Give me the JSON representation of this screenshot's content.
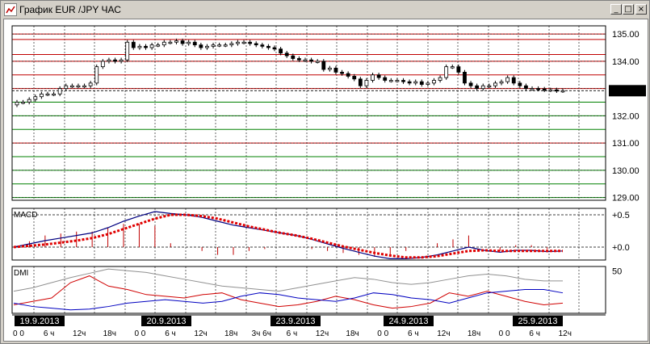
{
  "window": {
    "title": "График EUR /JPY ЧАС",
    "buttons": {
      "minimize": "_",
      "maximize": "□",
      "close": "×"
    }
  },
  "chart_data": [
    {
      "type": "candlestick",
      "symbol": "EUR/JPY",
      "timeframe": "ЧАС",
      "y_ticks": [
        "135.00",
        "134.00",
        "133.00",
        "132.00",
        "131.00",
        "130.00",
        "129.00"
      ],
      "ylim": [
        128.9,
        135.3
      ],
      "current_price": "132.92",
      "red_levels": [
        135.0,
        134.8,
        134.25,
        134.0,
        133.5,
        133.0,
        131.0
      ],
      "green_levels": [
        132.5,
        132.0,
        131.5,
        130.5,
        130.0,
        129.5,
        129.0
      ],
      "close": [
        132.5,
        132.5,
        132.6,
        132.7,
        132.8,
        132.8,
        132.8,
        133.0,
        133.1,
        133.1,
        133.1,
        133.1,
        133.2,
        133.8,
        134.0,
        134.05,
        134.0,
        134.05,
        134.7,
        134.5,
        134.55,
        134.5,
        134.6,
        134.6,
        134.7,
        134.7,
        134.75,
        134.65,
        134.7,
        134.6,
        134.5,
        134.55,
        134.6,
        134.6,
        134.6,
        134.65,
        134.7,
        134.7,
        134.65,
        134.6,
        134.55,
        134.5,
        134.45,
        134.3,
        134.2,
        134.1,
        134.05,
        134.05,
        134.0,
        134.0,
        133.7,
        133.75,
        133.6,
        133.55,
        133.45,
        133.35,
        133.1,
        133.3,
        133.5,
        133.4,
        133.3,
        133.3,
        133.3,
        133.25,
        133.2,
        133.25,
        133.15,
        133.2,
        133.3,
        133.4,
        133.8,
        133.8,
        133.6,
        133.2,
        133.1,
        133.0,
        133.1,
        133.1,
        133.2,
        133.25,
        133.4,
        133.2,
        133.1,
        133.0,
        133.0,
        132.98,
        132.95,
        132.95,
        132.92,
        132.92
      ],
      "macd": {
        "label": "MACD",
        "y_ticks": [
          "+0.5",
          "+0.0"
        ],
        "ylim": [
          -0.2,
          0.6
        ],
        "macd_line": [
          0.0,
          0.05,
          0.1,
          0.14,
          0.18,
          0.22,
          0.3,
          0.4,
          0.48,
          0.55,
          0.52,
          0.5,
          0.46,
          0.4,
          0.34,
          0.3,
          0.26,
          0.22,
          0.18,
          0.12,
          0.05,
          -0.02,
          -0.08,
          -0.14,
          -0.18,
          -0.18,
          -0.16,
          -0.12,
          -0.06,
          0.0,
          -0.05,
          -0.08,
          -0.05,
          -0.05,
          -0.07,
          -0.06
        ],
        "signal_line": [
          0.0,
          0.02,
          0.04,
          0.07,
          0.1,
          0.14,
          0.2,
          0.28,
          0.36,
          0.44,
          0.5,
          0.5,
          0.48,
          0.44,
          0.38,
          0.32,
          0.27,
          0.22,
          0.18,
          0.13,
          0.07,
          0.01,
          -0.04,
          -0.09,
          -0.13,
          -0.16,
          -0.16,
          -0.14,
          -0.1,
          -0.06,
          -0.05,
          -0.06,
          -0.06,
          -0.06,
          -0.06,
          -0.06
        ]
      },
      "dmi": {
        "label": "DMI",
        "y_ticks": [
          "50"
        ],
        "ylim": [
          0,
          55
        ],
        "adx": [
          26,
          30,
          36,
          42,
          47,
          52,
          50,
          48,
          44,
          40,
          36,
          32,
          30,
          28,
          26,
          30,
          34,
          38,
          42,
          40,
          36,
          34,
          36,
          40,
          44,
          46,
          44,
          40,
          38,
          38
        ],
        "plus_di": [
          10,
          14,
          18,
          36,
          44,
          32,
          28,
          22,
          20,
          18,
          22,
          24,
          16,
          12,
          8,
          10,
          14,
          20,
          16,
          10,
          6,
          8,
          12,
          24,
          20,
          26,
          20,
          14,
          10,
          12
        ],
        "minus_di": [
          12,
          8,
          6,
          4,
          5,
          8,
          12,
          14,
          16,
          14,
          12,
          14,
          20,
          24,
          22,
          18,
          16,
          14,
          18,
          24,
          22,
          18,
          16,
          12,
          18,
          24,
          26,
          28,
          28,
          24
        ]
      },
      "x_labels": [
        "0",
        "6ч",
        "12ч",
        "18ч",
        "0",
        "6ч",
        "12ч",
        "18ч",
        "3ч",
        "6ч",
        "12ч",
        "18ч",
        "0",
        "6ч",
        "12ч",
        "18ч",
        "0",
        "6ч",
        "12ч"
      ],
      "x_labels_display": [
        "0 0",
        "6 ч",
        "12ч",
        "18ч",
        "0 0",
        "6 ч",
        "12ч",
        "18ч",
        "3ч 6ч",
        "6 ч",
        "12ч",
        "18ч",
        "0 0",
        "6 ч",
        "12ч",
        "18ч",
        "0 0",
        "6 ч",
        "12ч"
      ],
      "dates": [
        "19.9.2013",
        "20.9.2013",
        "23.9.2013",
        "24.9.2013",
        "25.9.2013"
      ]
    }
  ]
}
